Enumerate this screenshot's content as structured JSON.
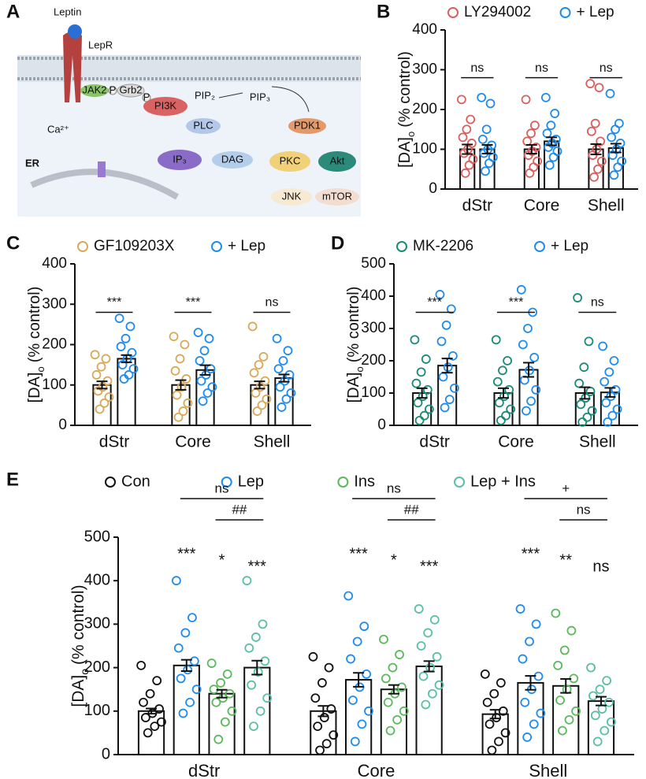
{
  "diagram": {
    "panel": "A",
    "labels": {
      "leptin": "Leptin",
      "lepr": "LepR",
      "jak2": "JAK2",
      "p1": "P",
      "grb2": "Grb2",
      "p2": "P",
      "pi3k": "PI3K",
      "pip2": "PIP₂",
      "pip3": "PIP₃",
      "plc": "PLC",
      "pdk1": "PDK1",
      "ca": "Ca²⁺",
      "ip3": "IP₃",
      "dag": "DAG",
      "pkc": "PKC",
      "akt": "Akt",
      "er": "ER",
      "jnk": "JNK",
      "mtor": "mTOR"
    }
  },
  "chart_data": [
    {
      "type": "bar",
      "panel": "B",
      "categories": [
        "dStr",
        "Core",
        "Shell"
      ],
      "ylabel": [
        "[DA]",
        "o",
        "(% control)"
      ],
      "ylim": [
        0,
        400
      ],
      "yticks": [
        0,
        100,
        200,
        300,
        400
      ],
      "series": [
        {
          "name": "LY294002",
          "color": "#d9605e",
          "values": [
            100,
            100,
            100
          ],
          "errors": [
            12,
            11,
            13
          ],
          "points": [
            [
              225,
              175,
              150,
              130,
              115,
              100,
              90,
              75,
              60,
              40
            ],
            [
              225,
              160,
              140,
              120,
              105,
              95,
              85,
              70,
              55,
              40
            ],
            [
              265,
              255,
              165,
              145,
              120,
              100,
              85,
              70,
              50,
              30
            ]
          ]
        },
        {
          "name": "+ Lep",
          "color": "#1f8ceb",
          "values": [
            100,
            120,
            103
          ],
          "errors": [
            11,
            10,
            11
          ],
          "points": [
            [
              230,
              215,
              150,
              125,
              110,
              100,
              90,
              80,
              65,
              45
            ],
            [
              230,
              190,
              160,
              140,
              125,
              115,
              105,
              95,
              80,
              60
            ],
            [
              240,
              165,
              150,
              130,
              115,
              100,
              85,
              70,
              55,
              35
            ]
          ]
        }
      ],
      "annotations": [
        {
          "category": 0,
          "series": [
            0,
            1
          ],
          "text": "ns"
        },
        {
          "category": 1,
          "series": [
            0,
            1
          ],
          "text": "ns"
        },
        {
          "category": 2,
          "series": [
            0,
            1
          ],
          "text": "ns"
        }
      ]
    },
    {
      "type": "bar",
      "panel": "C",
      "categories": [
        "dStr",
        "Core",
        "Shell"
      ],
      "ylabel": [
        "[DA]",
        "o",
        "(% control)"
      ],
      "ylim": [
        0,
        400
      ],
      "yticks": [
        0,
        100,
        200,
        300,
        400
      ],
      "series": [
        {
          "name": "GF109203X",
          "color": "#d9a857",
          "values": [
            100,
            100,
            100
          ],
          "errors": [
            9,
            12,
            9
          ],
          "points": [
            [
              175,
              165,
              145,
              125,
              110,
              95,
              85,
              70,
              55,
              40
            ],
            [
              220,
              200,
              165,
              135,
              115,
              95,
              75,
              55,
              35,
              20
            ],
            [
              245,
              170,
              150,
              130,
              110,
              95,
              80,
              65,
              50,
              35
            ]
          ]
        },
        {
          "name": "+ Lep",
          "color": "#1f8ceb",
          "values": [
            165,
            137,
            117
          ],
          "errors": [
            9,
            12,
            9
          ],
          "points": [
            [
              265,
              245,
              215,
              195,
              180,
              165,
              150,
              140,
              125,
              115
            ],
            [
              230,
              215,
              185,
              160,
              140,
              125,
              110,
              95,
              80,
              60
            ],
            [
              215,
              185,
              160,
              140,
              125,
              110,
              95,
              80,
              65,
              45
            ]
          ]
        }
      ],
      "annotations": [
        {
          "category": 0,
          "series": [
            0,
            1
          ],
          "text": "***"
        },
        {
          "category": 1,
          "series": [
            0,
            1
          ],
          "text": "***"
        },
        {
          "category": 2,
          "series": [
            0,
            1
          ],
          "text": "ns"
        }
      ]
    },
    {
      "type": "bar",
      "panel": "D",
      "categories": [
        "dStr",
        "Core",
        "Shell"
      ],
      "ylabel": [
        "[DA]",
        "o",
        "(% control)"
      ],
      "ylim": [
        0,
        500
      ],
      "yticks": [
        0,
        100,
        200,
        300,
        400,
        500
      ],
      "series": [
        {
          "name": "MK-2206",
          "color": "#1a8a78",
          "values": [
            100,
            100,
            100
          ],
          "errors": [
            15,
            15,
            18
          ],
          "points": [
            [
              265,
              205,
              165,
              130,
              110,
              90,
              70,
              50,
              30,
              15
            ],
            [
              265,
              200,
              170,
              135,
              110,
              90,
              70,
              50,
              30,
              15
            ],
            [
              395,
              260,
              180,
              130,
              105,
              85,
              65,
              45,
              25,
              10
            ]
          ]
        },
        {
          "name": "+ Lep",
          "color": "#1f8ceb",
          "values": [
            185,
            172,
            102
          ],
          "errors": [
            22,
            22,
            14
          ],
          "points": [
            [
              405,
              360,
              310,
              260,
              215,
              180,
              150,
              115,
              80,
              55
            ],
            [
              420,
              350,
              300,
              250,
              210,
              170,
              140,
              110,
              75,
              45
            ],
            [
              245,
              200,
              165,
              135,
              110,
              90,
              70,
              50,
              30,
              10
            ]
          ]
        }
      ],
      "annotations": [
        {
          "category": 0,
          "series": [
            0,
            1
          ],
          "text": "***"
        },
        {
          "category": 1,
          "series": [
            0,
            1
          ],
          "text": "***"
        },
        {
          "category": 2,
          "series": [
            0,
            1
          ],
          "text": "ns"
        }
      ]
    },
    {
      "type": "bar",
      "panel": "E",
      "categories": [
        "dStr",
        "Core",
        "Shell"
      ],
      "ylabel": [
        "[DA]",
        "o",
        "(% control)"
      ],
      "ylim": [
        0,
        500
      ],
      "yticks": [
        0,
        100,
        200,
        300,
        400,
        500
      ],
      "series": [
        {
          "name": "Con",
          "color": "#111111",
          "values": [
            100,
            100,
            93
          ],
          "errors": [
            6,
            12,
            10
          ],
          "points": [
            [
              205,
              170,
              140,
              120,
              105,
              95,
              85,
              75,
              65,
              50
            ],
            [
              225,
              200,
              165,
              130,
              105,
              85,
              65,
              45,
              25,
              10
            ],
            [
              185,
              165,
              140,
              120,
              100,
              85,
              70,
              50,
              30,
              10
            ]
          ]
        },
        {
          "name": "Lep",
          "color": "#1f8ceb",
          "values": [
            205,
            172,
            165
          ],
          "errors": [
            13,
            16,
            16
          ],
          "points": [
            [
              400,
              315,
              280,
              245,
              215,
              195,
              175,
              150,
              120,
              95
            ],
            [
              365,
              295,
              260,
              220,
              185,
              155,
              125,
              100,
              70,
              30
            ],
            [
              335,
              300,
              260,
              220,
              180,
              150,
              120,
              95,
              70,
              40
            ]
          ]
        },
        {
          "name": "Ins",
          "color": "#5cb85c",
          "values": [
            140,
            150,
            158
          ],
          "errors": [
            9,
            10,
            16
          ],
          "points": [
            [
              210,
              185,
              165,
              150,
              140,
              130,
              120,
              100,
              75,
              35
            ],
            [
              265,
              230,
              200,
              175,
              155,
              140,
              120,
              100,
              80,
              55
            ],
            [
              325,
              285,
              240,
              205,
              175,
              150,
              125,
              100,
              80,
              55
            ]
          ]
        },
        {
          "name": "Lep + Ins",
          "color": "#5bbfa3",
          "values": [
            200,
            203,
            123
          ],
          "errors": [
            16,
            12,
            10
          ],
          "points": [
            [
              400,
              300,
              270,
              245,
              215,
              190,
              160,
              130,
              100,
              65
            ],
            [
              335,
              310,
              280,
              250,
              225,
              200,
              180,
              160,
              140,
              115
            ],
            [
              200,
              170,
              150,
              135,
              120,
              105,
              90,
              75,
              55,
              30
            ]
          ]
        }
      ],
      "annotations": [
        {
          "category": 0,
          "series": [
            1
          ],
          "text": "***"
        },
        {
          "category": 0,
          "series": [
            2
          ],
          "text": "*"
        },
        {
          "category": 0,
          "series": [
            3
          ],
          "text": "***"
        },
        {
          "category": 0,
          "series": [
            2,
            3
          ],
          "text": "##"
        },
        {
          "category": 0,
          "series": [
            1,
            3
          ],
          "text": "ns"
        },
        {
          "category": 1,
          "series": [
            1
          ],
          "text": "***"
        },
        {
          "category": 1,
          "series": [
            2
          ],
          "text": "*"
        },
        {
          "category": 1,
          "series": [
            3
          ],
          "text": "***"
        },
        {
          "category": 1,
          "series": [
            2,
            3
          ],
          "text": "##"
        },
        {
          "category": 1,
          "series": [
            1,
            3
          ],
          "text": "ns"
        },
        {
          "category": 2,
          "series": [
            1
          ],
          "text": "***"
        },
        {
          "category": 2,
          "series": [
            2
          ],
          "text": "**"
        },
        {
          "category": 2,
          "series": [
            3
          ],
          "text": "ns"
        },
        {
          "category": 2,
          "series": [
            2,
            3
          ],
          "text": "ns"
        },
        {
          "category": 2,
          "series": [
            1,
            3
          ],
          "text": "+"
        }
      ]
    }
  ]
}
